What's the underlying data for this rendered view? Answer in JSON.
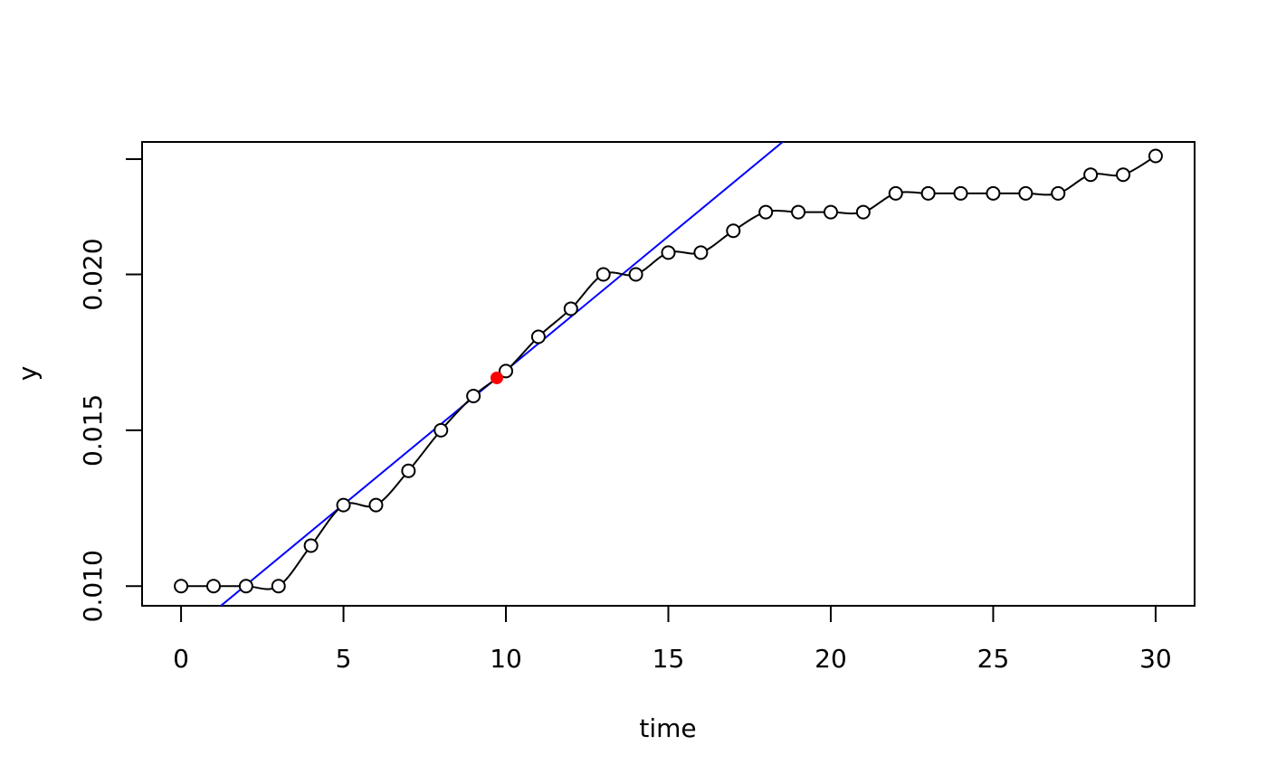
{
  "chart_data": {
    "type": "scatter",
    "title": "",
    "xlabel": "time",
    "ylabel": "y",
    "xlim": [
      -1.2,
      31.2
    ],
    "ylim": [
      0.00937,
      0.02425
    ],
    "x_ticks": [
      0,
      5,
      10,
      15,
      20,
      25,
      30
    ],
    "x_tick_labels": [
      "0",
      "5",
      "10",
      "15",
      "20",
      "25",
      "30"
    ],
    "y_ticks": [
      0.01,
      0.015,
      0.02
    ],
    "y_tick_labels": [
      "0.010",
      "0.015",
      "0.020"
    ],
    "y_extra_tick": 0.0237,
    "grid": false,
    "legend": "none",
    "series": [
      {
        "style": "open-circles-with-smooth-line",
        "color": "#000000",
        "x": [
          0,
          1,
          2,
          3,
          4,
          5,
          6,
          7,
          8,
          9,
          10,
          11,
          12,
          13,
          14,
          15,
          16,
          17,
          18,
          19,
          20,
          21,
          22,
          23,
          24,
          25,
          26,
          27,
          28,
          29,
          30
        ],
        "y": [
          0.01,
          0.01,
          0.01,
          0.01,
          0.0113,
          0.0126,
          0.0126,
          0.0137,
          0.015,
          0.0161,
          0.0169,
          0.018,
          0.0189,
          0.02,
          0.02,
          0.0207,
          0.0207,
          0.0214,
          0.022,
          0.022,
          0.022,
          0.022,
          0.0226,
          0.0226,
          0.0226,
          0.0226,
          0.0226,
          0.0226,
          0.0232,
          0.0232,
          0.0238
        ]
      }
    ],
    "tangent_line": {
      "color": "#0000ff",
      "x0": 9.72,
      "y0": 0.01668,
      "slope": 0.0008605
    },
    "highlight_point": {
      "x": 9.72,
      "y": 0.01668,
      "color": "#ff0000"
    }
  }
}
